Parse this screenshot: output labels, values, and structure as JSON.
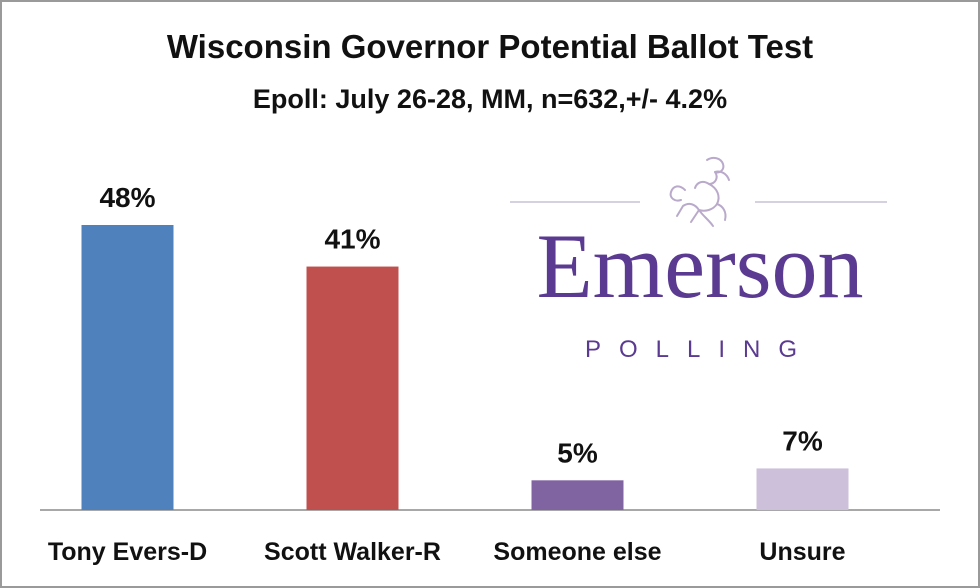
{
  "chart_data": {
    "type": "bar",
    "title": "Wisconsin Governor Potential Ballot Test",
    "subtitle": "Epoll: July 26-28, MM, n=632,+/- 4.2%",
    "categories": [
      "Tony Evers-D",
      "Scott Walker-R",
      "Someone else",
      "Unsure"
    ],
    "values": [
      48,
      41,
      5,
      7
    ],
    "value_labels": [
      "48%",
      "41%",
      "5%",
      "7%"
    ],
    "colors": [
      "#4f81bd",
      "#c0504d",
      "#8064a2",
      "#ccc0da"
    ],
    "ylim": [
      0,
      55
    ],
    "grid": false,
    "legend": "none"
  },
  "logo": {
    "wordmark": "Emerson",
    "subtext": "POLLING",
    "color": "#5b3a91",
    "icon": "lion-rampant-icon"
  }
}
